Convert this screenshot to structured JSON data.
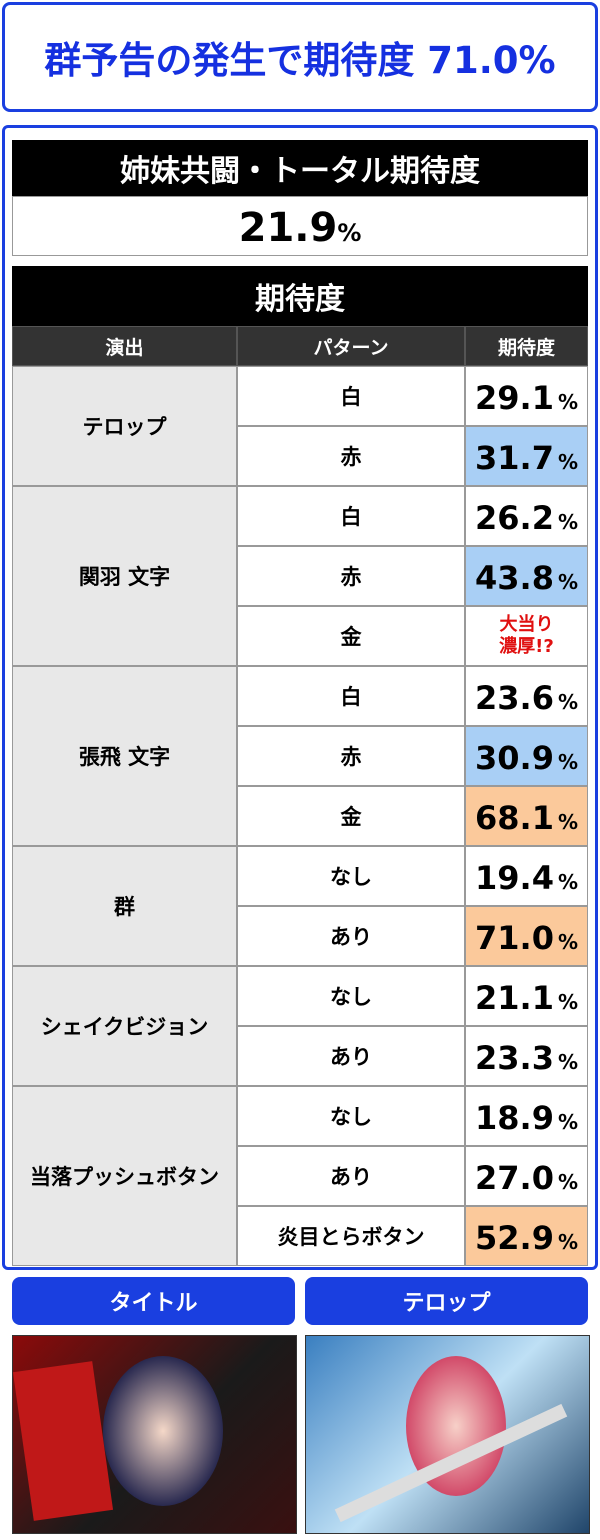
{
  "header": {
    "title": "群予告の発生で期待度 71.0%"
  },
  "total": {
    "title": "姉妹共闘・トータル期待度",
    "value": "21.9",
    "unit": "%"
  },
  "table": {
    "title": "期待度",
    "columns": [
      "演出",
      "パターン",
      "期待度"
    ],
    "groups": [
      {
        "label": "テロップ",
        "rows": [
          {
            "pattern": "白",
            "value": "29.1",
            "unit": "%",
            "color": "#ffffff"
          },
          {
            "pattern": "赤",
            "value": "31.7",
            "unit": "%",
            "color": "#a9cff5"
          }
        ]
      },
      {
        "label": "関羽 文字",
        "rows": [
          {
            "pattern": "白",
            "value": "26.2",
            "unit": "%",
            "color": "#ffffff"
          },
          {
            "pattern": "赤",
            "value": "43.8",
            "unit": "%",
            "color": "#a9cff5"
          },
          {
            "pattern": "金",
            "note": [
              "大当り",
              "濃厚!?"
            ],
            "color": "#ffffff"
          }
        ]
      },
      {
        "label": "張飛 文字",
        "rows": [
          {
            "pattern": "白",
            "value": "23.6",
            "unit": "%",
            "color": "#ffffff"
          },
          {
            "pattern": "赤",
            "value": "30.9",
            "unit": "%",
            "color": "#a9cff5"
          },
          {
            "pattern": "金",
            "value": "68.1",
            "unit": "%",
            "color": "#fbc99b"
          }
        ]
      },
      {
        "label": "群",
        "rows": [
          {
            "pattern": "なし",
            "value": "19.4",
            "unit": "%",
            "color": "#ffffff"
          },
          {
            "pattern": "あり",
            "value": "71.0",
            "unit": "%",
            "color": "#fbc99b"
          }
        ]
      },
      {
        "label": "シェイクビジョン",
        "rows": [
          {
            "pattern": "なし",
            "value": "21.1",
            "unit": "%",
            "color": "#ffffff"
          },
          {
            "pattern": "あり",
            "value": "23.3",
            "unit": "%",
            "color": "#ffffff"
          }
        ]
      },
      {
        "label": "当落プッシュボタン",
        "rows": [
          {
            "pattern": "なし",
            "value": "18.9",
            "unit": "%",
            "color": "#ffffff"
          },
          {
            "pattern": "あり",
            "value": "27.0",
            "unit": "%",
            "color": "#ffffff"
          },
          {
            "pattern": "炎目とらボタン",
            "value": "52.9",
            "unit": "%",
            "color": "#fbc99b"
          }
        ]
      }
    ]
  },
  "buttons": [
    "タイトル",
    "テロップ"
  ]
}
